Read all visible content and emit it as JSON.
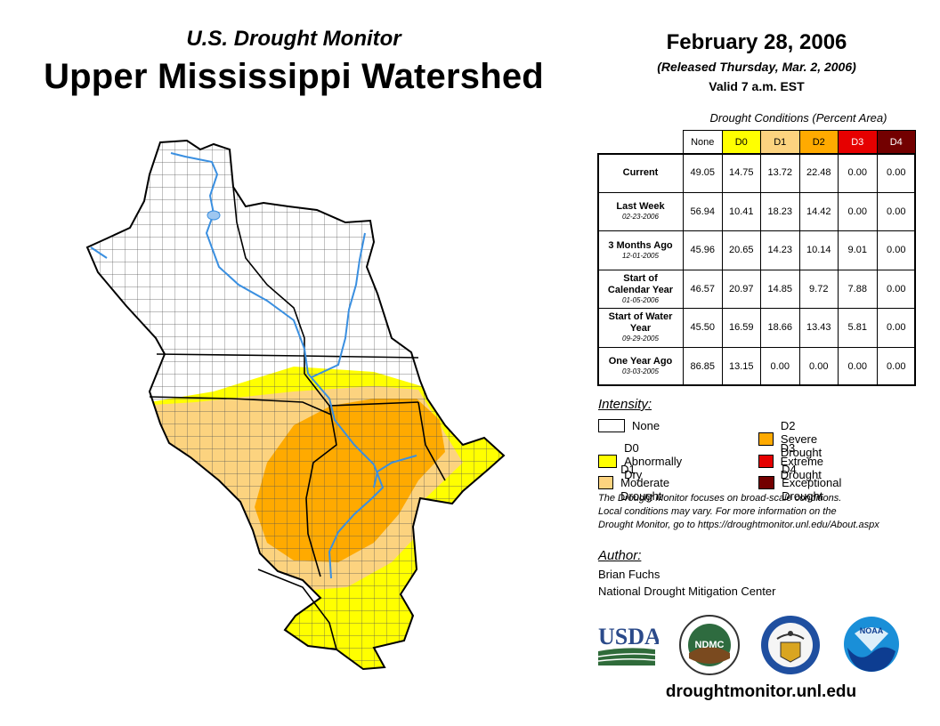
{
  "header": {
    "subtitle": "U.S. Drought Monitor",
    "title": "Upper Mississippi Watershed",
    "date": "February 28, 2006",
    "released": "(Released Thursday, Mar. 2, 2006)",
    "valid": "Valid 7 a.m. EST"
  },
  "table": {
    "caption": "Drought Conditions (Percent Area)",
    "columns": [
      "None",
      "D0",
      "D1",
      "D2",
      "D3",
      "D4"
    ],
    "column_colors": [
      "#ffffff",
      "#ffff00",
      "#fcd37f",
      "#ffaa00",
      "#e60000",
      "#730000"
    ],
    "rows": [
      {
        "label": "Current",
        "date": "",
        "values": [
          "49.05",
          "14.75",
          "13.72",
          "22.48",
          "0.00",
          "0.00"
        ]
      },
      {
        "label": "Last Week",
        "date": "02-23-2006",
        "values": [
          "56.94",
          "10.41",
          "18.23",
          "14.42",
          "0.00",
          "0.00"
        ]
      },
      {
        "label": "3 Months Ago",
        "date": "12-01-2005",
        "values": [
          "45.96",
          "20.65",
          "14.23",
          "10.14",
          "9.01",
          "0.00"
        ]
      },
      {
        "label": "Start of Calendar Year",
        "date": "01-05-2006",
        "values": [
          "46.57",
          "20.97",
          "14.85",
          "9.72",
          "7.88",
          "0.00"
        ]
      },
      {
        "label": "Start of Water Year",
        "date": "09-29-2005",
        "values": [
          "45.50",
          "16.59",
          "18.66",
          "13.43",
          "5.81",
          "0.00"
        ]
      },
      {
        "label": "One Year Ago",
        "date": "03-03-2005",
        "values": [
          "86.85",
          "13.15",
          "0.00",
          "0.00",
          "0.00",
          "0.00"
        ]
      }
    ]
  },
  "legend": {
    "title": "Intensity:",
    "items": [
      {
        "label": "None",
        "color": "#ffffff"
      },
      {
        "label": "D0 Abnormally Dry",
        "color": "#ffff00"
      },
      {
        "label": "D1 Moderate Drought",
        "color": "#fcd37f"
      },
      {
        "label": "D2 Severe Drought",
        "color": "#ffaa00"
      },
      {
        "label": "D3 Extreme Drought",
        "color": "#e60000"
      },
      {
        "label": "D4 Exceptional Drought",
        "color": "#730000"
      }
    ]
  },
  "note": {
    "line1": "The Drought Monitor focuses on broad-scale conditions.",
    "line2": "Local conditions may vary. For more information on the",
    "line3": "Drought Monitor, go to https://droughtmonitor.unl.edu/About.aspx"
  },
  "author": {
    "title": "Author:",
    "name": "Brian Fuchs",
    "org": "National Drought Mitigation Center"
  },
  "logos": {
    "usda": "USDA",
    "ndmc": "NDMC",
    "noaa": "NOAA"
  },
  "site": "droughtmonitor.unl.edu"
}
